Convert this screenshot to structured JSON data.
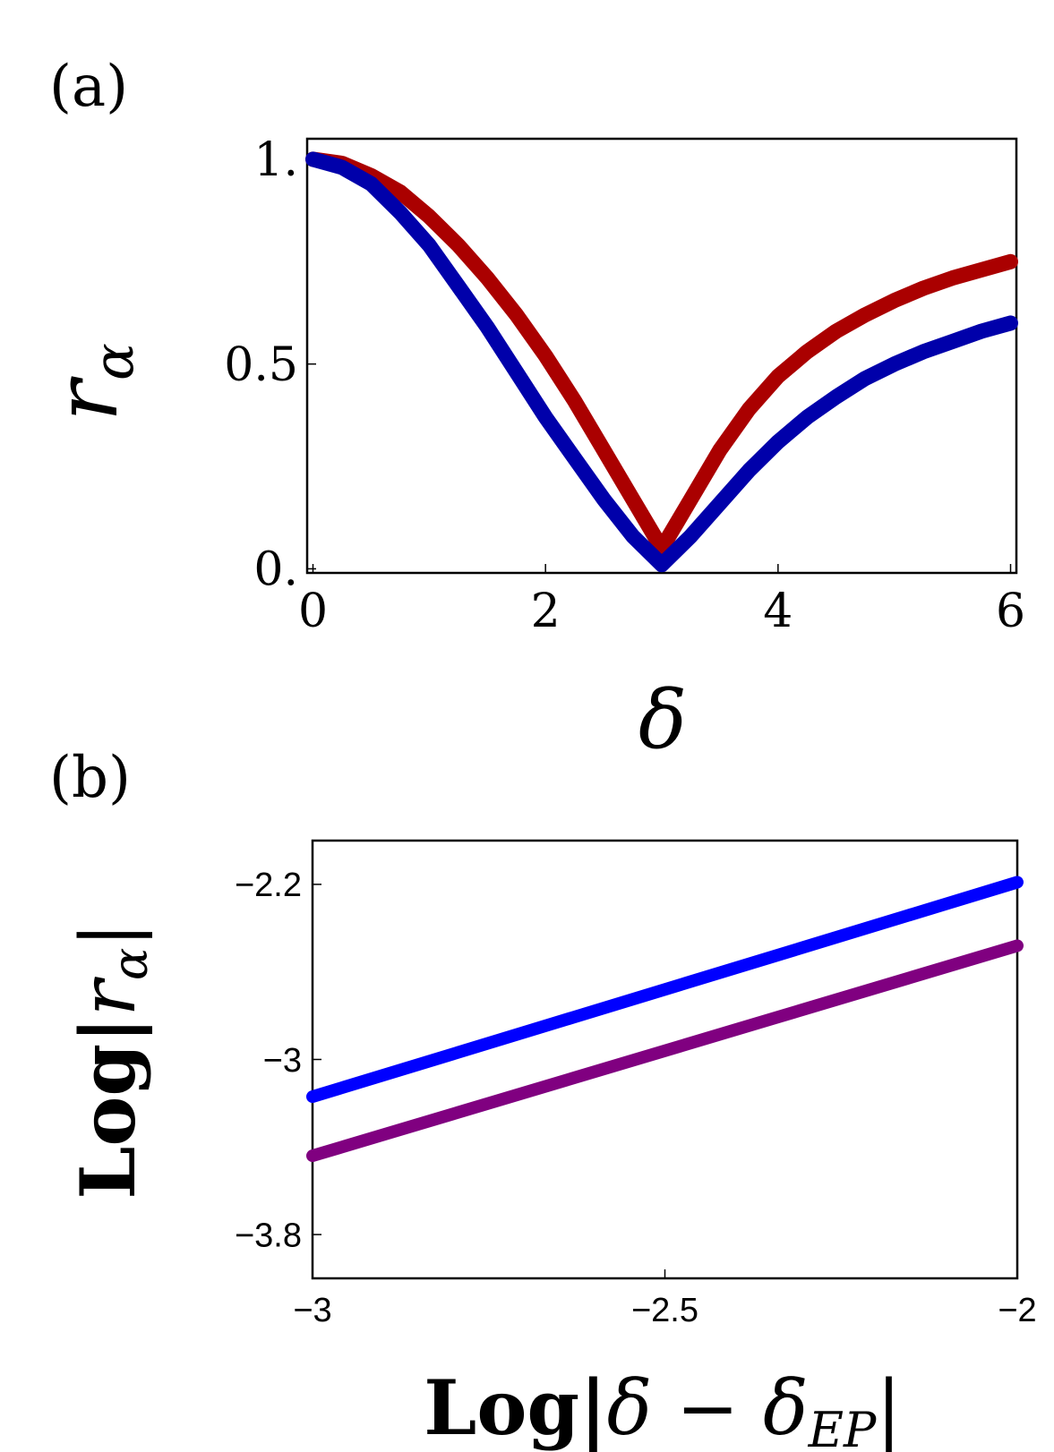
{
  "chart_data": [
    {
      "type": "line",
      "panel_label": "(a)",
      "xlabel": "δ",
      "ylabel": "r",
      "ylabel_sub": "α",
      "xlim": [
        -0.05,
        6.05
      ],
      "ylim": [
        -0.01,
        1.05
      ],
      "xticks": [
        0,
        2,
        4,
        6
      ],
      "xtick_labels": [
        "0",
        "2",
        "4",
        "6"
      ],
      "yticks": [
        0,
        0.5,
        1
      ],
      "ytick_labels": [
        "0.",
        "0.5",
        "1."
      ],
      "grid": false,
      "series": [
        {
          "color": "#aa0000",
          "x": [
            0,
            0.25,
            0.5,
            0.75,
            1.0,
            1.25,
            1.5,
            1.75,
            2.0,
            2.25,
            2.5,
            2.75,
            3.0,
            3.25,
            3.5,
            3.75,
            4.0,
            4.25,
            4.5,
            4.75,
            5.0,
            5.25,
            5.5,
            5.75,
            6.0
          ],
          "y": [
            1.0,
            0.99,
            0.96,
            0.92,
            0.86,
            0.79,
            0.71,
            0.62,
            0.52,
            0.41,
            0.29,
            0.17,
            0.05,
            0.17,
            0.29,
            0.39,
            0.47,
            0.53,
            0.58,
            0.62,
            0.655,
            0.685,
            0.71,
            0.73,
            0.75
          ]
        },
        {
          "color": "#0000aa",
          "x": [
            0,
            0.25,
            0.5,
            0.75,
            1.0,
            1.25,
            1.5,
            1.75,
            2.0,
            2.25,
            2.5,
            2.75,
            3.0,
            3.25,
            3.5,
            3.75,
            4.0,
            4.25,
            4.5,
            4.75,
            5.0,
            5.25,
            5.5,
            5.75,
            6.0
          ],
          "y": [
            1.0,
            0.98,
            0.94,
            0.87,
            0.79,
            0.69,
            0.59,
            0.48,
            0.37,
            0.27,
            0.17,
            0.08,
            0.01,
            0.08,
            0.16,
            0.24,
            0.31,
            0.37,
            0.42,
            0.465,
            0.5,
            0.53,
            0.555,
            0.58,
            0.6
          ]
        }
      ]
    },
    {
      "type": "line",
      "panel_label": "(b)",
      "xlabel_parts": [
        "Log|",
        "δ",
        " − ",
        "δ",
        "EP",
        "|"
      ],
      "ylabel_parts": [
        "Log|",
        "r",
        "α",
        "|"
      ],
      "xlim": [
        -3,
        -2
      ],
      "ylim": [
        -4.0,
        -2.0
      ],
      "xticks": [
        -3,
        -2.5,
        -2
      ],
      "xtick_labels": [
        "−3",
        "−2.5",
        "−2"
      ],
      "yticks": [
        -2.2,
        -3,
        -3.8
      ],
      "ytick_labels": [
        "−2.2",
        "−3",
        "−3.8"
      ],
      "grid": false,
      "series": [
        {
          "color": "#0000ff",
          "x": [
            -3,
            -2
          ],
          "y": [
            -3.17,
            -2.19
          ]
        },
        {
          "color": "#800080",
          "x": [
            -3,
            -2
          ],
          "y": [
            -3.44,
            -2.48
          ]
        }
      ]
    }
  ]
}
